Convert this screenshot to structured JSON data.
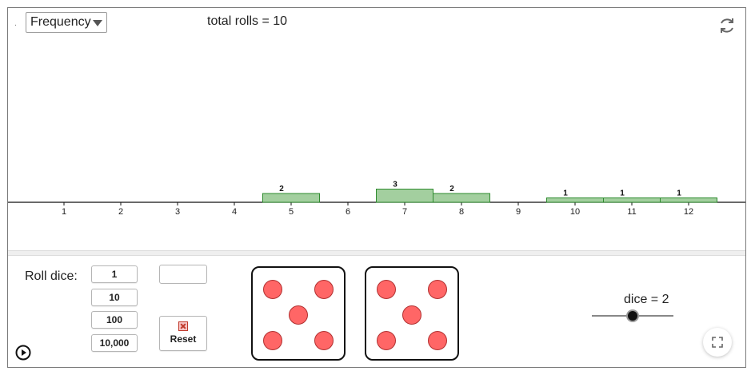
{
  "controls": {
    "dropdown_value": "Frequency",
    "total_rolls_text": "total rolls = 10",
    "roll_dice_label": "Roll dice:",
    "roll_buttons": [
      "1",
      "10",
      "100",
      "10,000"
    ],
    "reset_label": "Reset",
    "dice_text": "dice = 2",
    "dice_count": 2,
    "dice_slider_min": 1,
    "dice_slider_max": 3
  },
  "dice_faces": [
    5,
    5
  ],
  "colors": {
    "bar_fill": "#a3cf9f",
    "bar_stroke": "#2e8b2e",
    "pip_fill": "#ff6666",
    "pip_stroke": "#b03030"
  },
  "icons": {
    "refresh": "refresh-icon",
    "reset": "reset-x-icon",
    "play": "play-icon",
    "fullscreen": "fullscreen-icon",
    "dropdown": "chevron-down-icon"
  },
  "chart_data": {
    "type": "bar",
    "categories": [
      "1",
      "2",
      "3",
      "4",
      "5",
      "6",
      "7",
      "8",
      "9",
      "10",
      "11",
      "12"
    ],
    "values": [
      0,
      0,
      0,
      0,
      2,
      0,
      3,
      2,
      0,
      1,
      1,
      1
    ],
    "title": "",
    "xlabel": "",
    "ylabel": "",
    "grid": false,
    "data_labels": true
  }
}
